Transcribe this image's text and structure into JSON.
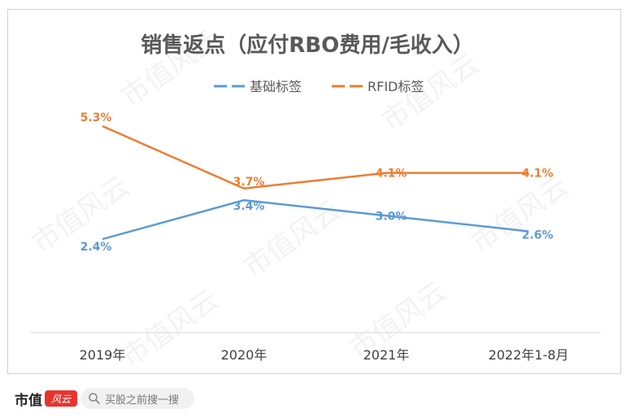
{
  "chart_data": {
    "type": "line",
    "title": "销售返点（应付RBO费用/毛收入）",
    "categories": [
      "2019年",
      "2020年",
      "2021年",
      "2022年1-8月"
    ],
    "series": [
      {
        "name": "基础标签",
        "values": [
          2.4,
          3.4,
          3.0,
          2.6
        ],
        "labels": [
          "2.4%",
          "3.4%",
          "3.0%",
          "2.6%"
        ],
        "color": "#5b9bd5"
      },
      {
        "name": "RFID标签",
        "values": [
          5.3,
          3.7,
          4.1,
          4.1
        ],
        "labels": [
          "5.3%",
          "3.7%",
          "4.1%",
          "4.1%"
        ],
        "color": "#ed7d31"
      }
    ],
    "ylim": [
      0,
      6.2
    ],
    "grid": false,
    "legend": "top-center"
  },
  "watermark": "市值风云",
  "footer": {
    "brand": "市值",
    "brand_mark": "风云",
    "search_placeholder": "买股之前搜一搜"
  },
  "colors": {
    "title": "#595959",
    "axis_text": "#404040",
    "axis_line": "#d9d9d9",
    "brand_red": "#e8342f"
  },
  "icons": {
    "search": "search-icon"
  }
}
